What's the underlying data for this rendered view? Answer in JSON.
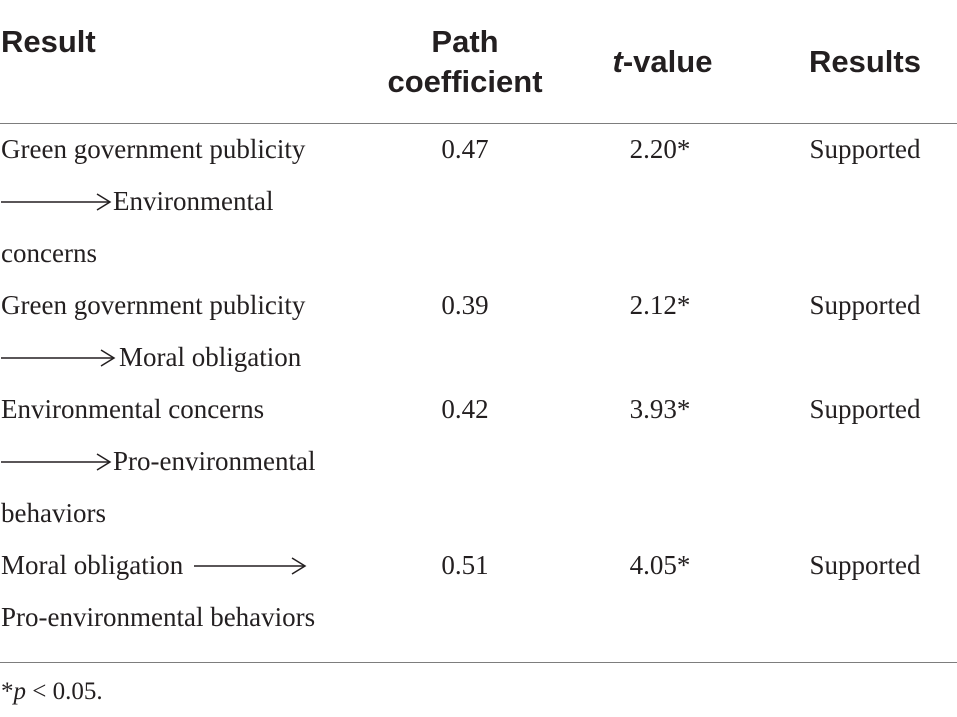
{
  "header": {
    "result": "Result",
    "path_line1": "Path",
    "path_line2": "coefficient",
    "t_italic": "t",
    "t_rest": "-value",
    "results": "Results"
  },
  "rows": [
    {
      "lines": [
        "Green government publicity",
        "Environmental",
        "concerns"
      ],
      "coefficient": "0.47",
      "t_value": "2.20*",
      "result": "Supported"
    },
    {
      "lines": [
        "Green government publicity",
        "Moral obligation"
      ],
      "coefficient": "0.39",
      "t_value": "2.12*",
      "result": "Supported"
    },
    {
      "lines": [
        "Environmental concerns",
        "Pro-environmental",
        "behaviors"
      ],
      "coefficient": "0.42",
      "t_value": "3.93*",
      "result": "Supported"
    },
    {
      "lines": [
        "Moral obligation",
        "Pro-environmental behaviors"
      ],
      "coefficient": "0.51",
      "t_value": "4.05*",
      "result": "Supported"
    }
  ],
  "footnote": {
    "star": "*",
    "p": "p",
    "rest": " < 0.05."
  },
  "icons": {
    "arrow": "right-arrow-icon"
  }
}
